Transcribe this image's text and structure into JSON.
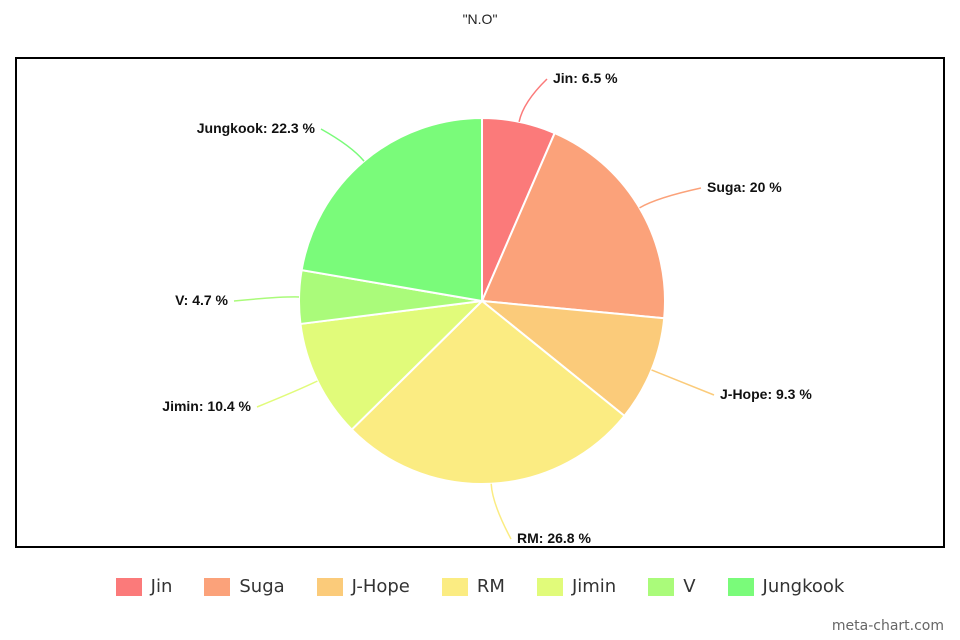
{
  "chart_data": {
    "type": "pie",
    "title": "\"N.O\"",
    "slices": [
      {
        "name": "Jin",
        "value": 6.5,
        "label": "Jin: 6.5 %",
        "color": "#fb7a7a"
      },
      {
        "name": "Suga",
        "value": 20,
        "label": "Suga: 20 %",
        "color": "#fba27a"
      },
      {
        "name": "J-Hope",
        "value": 9.3,
        "label": "J-Hope: 9.3 %",
        "color": "#fbcb7a"
      },
      {
        "name": "RM",
        "value": 26.8,
        "label": "RM: 26.8 %",
        "color": "#fbec82"
      },
      {
        "name": "Jimin",
        "value": 10.4,
        "label": "Jimin: 10.4 %",
        "color": "#e1fb7a"
      },
      {
        "name": "V",
        "value": 4.7,
        "label": "V: 4.7 %",
        "color": "#aafb7a"
      },
      {
        "name": "Jungkook",
        "value": 22.3,
        "label": "Jungkook: 22.3 %",
        "color": "#7afb7a"
      }
    ],
    "legend_position": "bottom"
  },
  "watermark": "meta-chart.com"
}
